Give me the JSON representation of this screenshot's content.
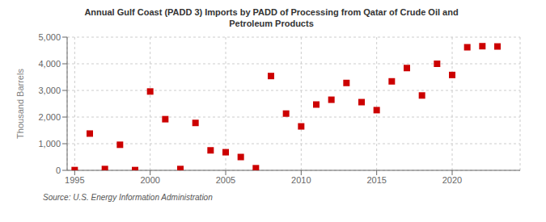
{
  "chart_data": {
    "type": "scatter",
    "title": "Annual Gulf Coast (PADD 3) Imports by PADD of Processing from Qatar of Crude Oil and\nPetroleum Products",
    "ylabel": "Thousand Barrels",
    "source": "Source: U.S. Energy Information Administration",
    "x": [
      1995,
      1996,
      1997,
      1998,
      1999,
      2000,
      2001,
      2002,
      2003,
      2004,
      2005,
      2006,
      2007,
      2008,
      2009,
      2010,
      2011,
      2012,
      2013,
      2014,
      2015,
      2016,
      2017,
      2018,
      2019,
      2020,
      2021,
      2022,
      2023
    ],
    "values": [
      10,
      1380,
      50,
      960,
      10,
      2960,
      1920,
      50,
      1780,
      750,
      680,
      500,
      80,
      3540,
      2130,
      1650,
      2470,
      2650,
      3280,
      2560,
      2260,
      3340,
      3840,
      2810,
      4000,
      3580,
      4620,
      4660,
      4650
    ],
    "color": "#cc0000",
    "marker": "square",
    "xlim": [
      1994.5,
      2024.5
    ],
    "ylim": [
      0,
      5000
    ],
    "xticks": [
      1995,
      2000,
      2005,
      2010,
      2015,
      2020
    ],
    "yticks": [
      0,
      {
        "value": 1000,
        "label": "1,000"
      },
      {
        "value": 2000,
        "label": "2,000"
      },
      {
        "value": 3000,
        "label": "3,000"
      },
      {
        "value": 4000,
        "label": "4,000"
      },
      {
        "value": 5000,
        "label": "5,000"
      }
    ],
    "grid": true
  }
}
